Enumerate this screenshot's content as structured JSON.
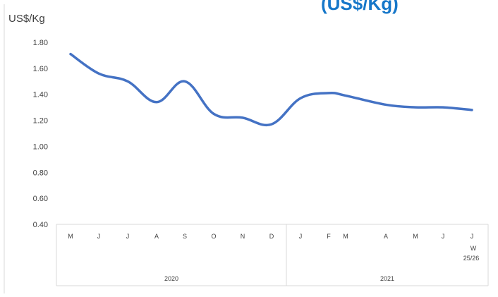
{
  "title_fragment": "(US$/Kg)",
  "chart_data": {
    "type": "line",
    "ylabel": "US$/Kg",
    "ylim": [
      0.4,
      1.8
    ],
    "yticks": [
      "1.80",
      "1.60",
      "1.40",
      "1.20",
      "1.00",
      "0.80",
      "0.60",
      "0.40"
    ],
    "x_labels": [
      "M",
      "J",
      "J",
      "A",
      "S",
      "O",
      "N",
      "D",
      "J",
      "F",
      "M",
      "A",
      "M",
      "J",
      "J"
    ],
    "x_last_extra": [
      "W",
      "25/26"
    ],
    "year_groups": [
      {
        "label": "2020",
        "span": [
          0,
          7
        ]
      },
      {
        "label": "2021",
        "span": [
          8,
          14
        ]
      }
    ],
    "series": [
      {
        "color": "#4472c4",
        "values": [
          1.71,
          1.56,
          1.5,
          1.34,
          1.5,
          1.25,
          1.22,
          1.17,
          1.37,
          1.41,
          1.39,
          1.32,
          1.3,
          1.3,
          1.28
        ]
      }
    ],
    "grid": false,
    "legend": "none"
  }
}
